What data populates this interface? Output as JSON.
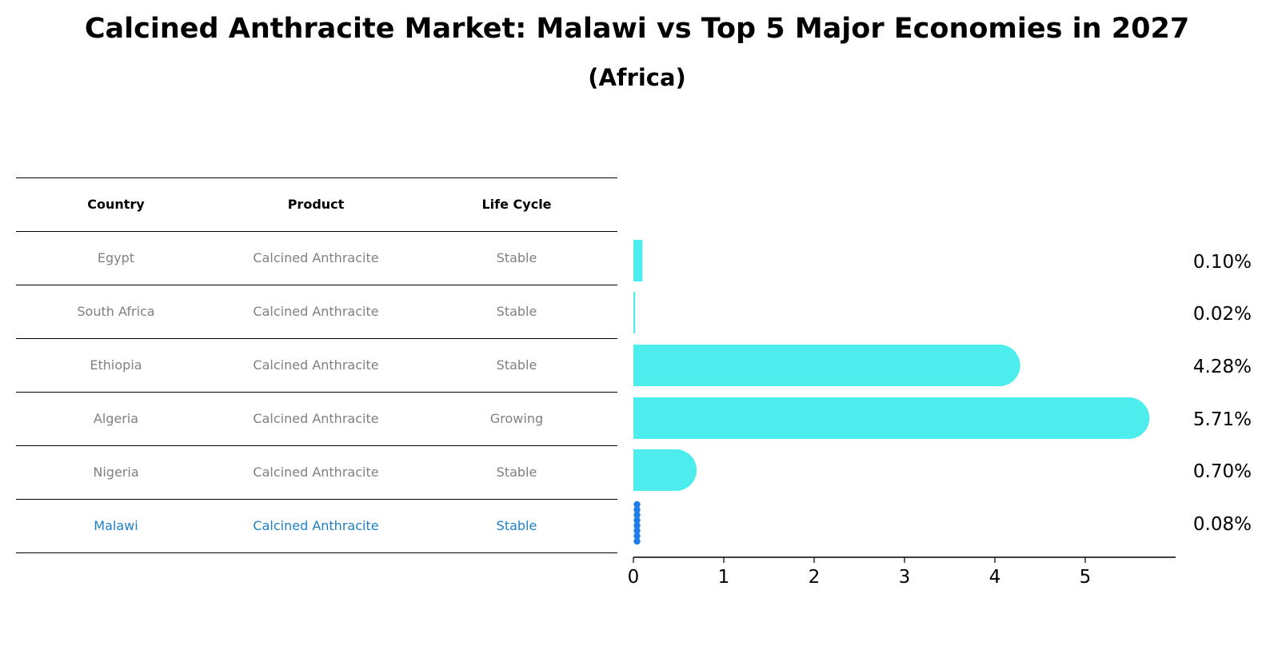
{
  "title": "Calcined Anthracite Market: Malawi vs Top 5 Major Economies in 2027",
  "subtitle": "(Africa)",
  "table": {
    "headers": [
      "Country",
      "Product",
      "Life Cycle"
    ],
    "rows": [
      {
        "country": "Egypt",
        "product": "Calcined Anthracite",
        "life_cycle": "Stable"
      },
      {
        "country": "South Africa",
        "product": "Calcined Anthracite",
        "life_cycle": "Stable"
      },
      {
        "country": "Ethiopia",
        "product": "Calcined Anthracite",
        "life_cycle": "Stable"
      },
      {
        "country": "Algeria",
        "product": "Calcined Anthracite",
        "life_cycle": "Growing"
      },
      {
        "country": "Nigeria",
        "product": "Calcined Anthracite",
        "life_cycle": "Stable"
      },
      {
        "country": "Malawi",
        "product": "Calcined Anthracite",
        "life_cycle": "Stable"
      }
    ]
  },
  "chart_data": {
    "type": "bar",
    "orientation": "horizontal",
    "categories": [
      "Egypt",
      "South Africa",
      "Ethiopia",
      "Algeria",
      "Nigeria",
      "Malawi"
    ],
    "values": [
      0.1,
      0.02,
      4.28,
      5.71,
      0.7,
      0.08
    ],
    "labels": [
      "0.10%",
      "0.02%",
      "4.28%",
      "5.71%",
      "0.70%",
      "0.08%"
    ],
    "xticks": [
      "0",
      "1",
      "2",
      "3",
      "4",
      "5"
    ],
    "xlim": [
      0,
      6
    ],
    "highlight": "Malawi",
    "bar_color": "#4cedec",
    "highlight_color": "#1f7fe6",
    "title": "Calcined Anthracite Market: Malawi vs Top 5 Major Economies in 2027",
    "subtitle": "(Africa)",
    "xlabel": "",
    "ylabel": ""
  }
}
